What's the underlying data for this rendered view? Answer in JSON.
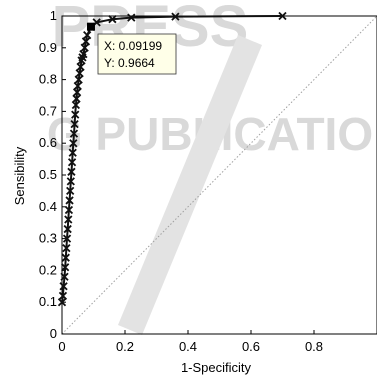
{
  "watermark": {
    "line1": "PRESS",
    "line2": "G PUBLICATIO"
  },
  "chart_data": {
    "type": "line",
    "title": "",
    "xlabel": "1-Specificity",
    "ylabel": "Sensibility",
    "xlim": [
      0,
      1
    ],
    "ylim": [
      0,
      1
    ],
    "x_ticks": [
      "0",
      "0.2",
      "0.4",
      "0.6",
      "0.8"
    ],
    "y_ticks": [
      "0",
      "0.1",
      "0.2",
      "0.3",
      "0.4",
      "0.5",
      "0.6",
      "0.7",
      "0.8",
      "0.9",
      "1"
    ],
    "grid": false,
    "series": [
      {
        "marker": "x",
        "color": "#111111",
        "x": [
          0.0,
          0.003,
          0.005,
          0.008,
          0.01,
          0.012,
          0.014,
          0.016,
          0.018,
          0.02,
          0.022,
          0.024,
          0.026,
          0.028,
          0.03,
          0.032,
          0.034,
          0.036,
          0.038,
          0.04,
          0.042,
          0.044,
          0.046,
          0.048,
          0.05,
          0.053,
          0.056,
          0.059,
          0.062,
          0.065,
          0.068,
          0.072,
          0.076,
          0.08,
          0.092,
          0.11,
          0.16,
          0.22,
          0.36,
          0.7
        ],
        "y": [
          0.1,
          0.12,
          0.15,
          0.18,
          0.21,
          0.24,
          0.27,
          0.3,
          0.33,
          0.36,
          0.39,
          0.42,
          0.45,
          0.48,
          0.51,
          0.54,
          0.57,
          0.6,
          0.63,
          0.66,
          0.69,
          0.72,
          0.74,
          0.76,
          0.78,
          0.8,
          0.82,
          0.84,
          0.86,
          0.87,
          0.88,
          0.9,
          0.92,
          0.94,
          0.966,
          0.98,
          0.99,
          0.995,
          0.998,
          1.0
        ]
      }
    ],
    "reference_line": {
      "x": [
        0,
        1
      ],
      "y": [
        0,
        1
      ],
      "style": "dotted",
      "color": "#a0a0a0"
    },
    "datatip": {
      "x": 0.09199,
      "y": 0.9664,
      "x_text": "X: 0.09199",
      "y_text": "Y: 0.9664"
    }
  }
}
